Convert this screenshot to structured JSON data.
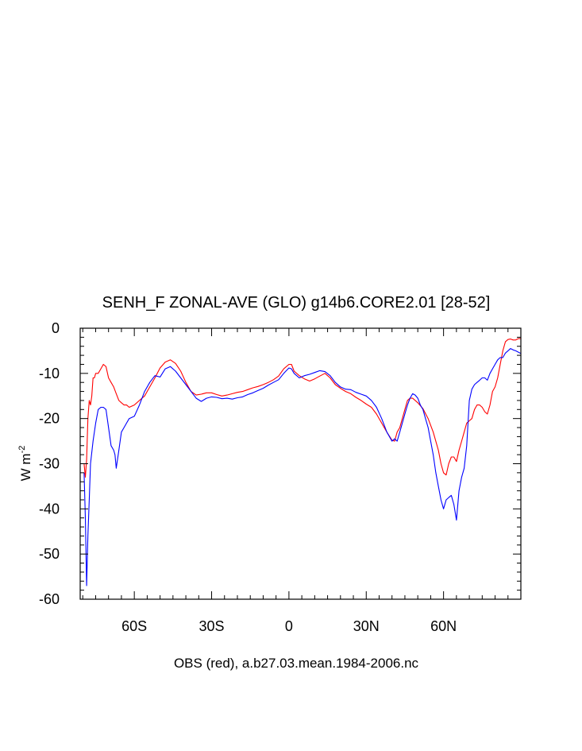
{
  "chart_data": {
    "type": "line",
    "title": "SENH_F ZONAL-AVE (GLO) g14b6.CORE2.01 [28-52]",
    "ylabel": "W m",
    "ylabel_exponent": "-2",
    "caption": "OBS (red), a.b27.03.mean.1984-2006.nc",
    "xlim": [
      -81,
      90
    ],
    "ylim": [
      -60,
      0
    ],
    "x_ticks": [
      {
        "value": -60,
        "label": "60S"
      },
      {
        "value": -30,
        "label": "30S"
      },
      {
        "value": 0,
        "label": "0"
      },
      {
        "value": 30,
        "label": "30N"
      },
      {
        "value": 60,
        "label": "60N"
      }
    ],
    "y_ticks": [
      {
        "value": 0,
        "label": "0"
      },
      {
        "value": -10,
        "label": "-10"
      },
      {
        "value": -20,
        "label": "-20"
      },
      {
        "value": -30,
        "label": "-30"
      },
      {
        "value": -40,
        "label": "-40"
      },
      {
        "value": -50,
        "label": "-50"
      },
      {
        "value": -60,
        "label": "-60"
      }
    ],
    "grid": false,
    "series": [
      {
        "color": "#ff0000",
        "points": [
          [
            -79.5,
            -30
          ],
          [
            -79,
            -33
          ],
          [
            -78.5,
            -29
          ],
          [
            -78,
            -20
          ],
          [
            -77.5,
            -16
          ],
          [
            -77,
            -17
          ],
          [
            -76.5,
            -15
          ],
          [
            -76,
            -11
          ],
          [
            -75.5,
            -11
          ],
          [
            -75,
            -10
          ],
          [
            -74,
            -10
          ],
          [
            -73,
            -9
          ],
          [
            -72,
            -8
          ],
          [
            -71,
            -8.5
          ],
          [
            -70,
            -11
          ],
          [
            -69,
            -12
          ],
          [
            -68,
            -13
          ],
          [
            -67,
            -14.5
          ],
          [
            -66,
            -16
          ],
          [
            -65,
            -16.5
          ],
          [
            -64,
            -17
          ],
          [
            -63,
            -17
          ],
          [
            -62,
            -17.5
          ],
          [
            -60,
            -17
          ],
          [
            -58,
            -16
          ],
          [
            -56,
            -15
          ],
          [
            -54,
            -13
          ],
          [
            -52,
            -11
          ],
          [
            -50,
            -8.8
          ],
          [
            -48,
            -7.5
          ],
          [
            -46,
            -7
          ],
          [
            -44,
            -7.8
          ],
          [
            -42,
            -9.5
          ],
          [
            -40,
            -12
          ],
          [
            -38,
            -14
          ],
          [
            -36,
            -14.8
          ],
          [
            -34,
            -14.6
          ],
          [
            -32,
            -14.3
          ],
          [
            -30,
            -14.3
          ],
          [
            -28,
            -14.7
          ],
          [
            -26,
            -15
          ],
          [
            -24,
            -14.8
          ],
          [
            -22,
            -14.5
          ],
          [
            -20,
            -14.2
          ],
          [
            -18,
            -14
          ],
          [
            -16,
            -13.6
          ],
          [
            -14,
            -13.2
          ],
          [
            -12,
            -12.9
          ],
          [
            -10,
            -12.5
          ],
          [
            -8,
            -12
          ],
          [
            -6,
            -11.4
          ],
          [
            -4,
            -10.6
          ],
          [
            -2,
            -9
          ],
          [
            0,
            -8
          ],
          [
            1,
            -8
          ],
          [
            2,
            -9.5
          ],
          [
            4,
            -10.5
          ],
          [
            6,
            -11.2
          ],
          [
            8,
            -11.7
          ],
          [
            10,
            -11.2
          ],
          [
            12,
            -10.6
          ],
          [
            14,
            -10
          ],
          [
            16,
            -11
          ],
          [
            18,
            -12.5
          ],
          [
            20,
            -13.3
          ],
          [
            22,
            -14
          ],
          [
            24,
            -14.5
          ],
          [
            26,
            -15.3
          ],
          [
            28,
            -16
          ],
          [
            30,
            -16.8
          ],
          [
            32,
            -17.5
          ],
          [
            34,
            -19
          ],
          [
            36,
            -21
          ],
          [
            38,
            -23
          ],
          [
            40,
            -24.8
          ],
          [
            41,
            -25
          ],
          [
            42,
            -23
          ],
          [
            43,
            -22
          ],
          [
            44,
            -20
          ],
          [
            45,
            -18
          ],
          [
            46,
            -16
          ],
          [
            47,
            -15.5
          ],
          [
            48,
            -15.5
          ],
          [
            50,
            -16.5
          ],
          [
            52,
            -17.8
          ],
          [
            54,
            -20
          ],
          [
            56,
            -23
          ],
          [
            58,
            -27
          ],
          [
            59,
            -30
          ],
          [
            60,
            -32
          ],
          [
            61,
            -32.5
          ],
          [
            62,
            -30
          ],
          [
            63,
            -28.5
          ],
          [
            64,
            -28.5
          ],
          [
            65,
            -29.5
          ],
          [
            66,
            -27
          ],
          [
            67,
            -25
          ],
          [
            68,
            -23
          ],
          [
            69,
            -21
          ],
          [
            70,
            -20.5
          ],
          [
            71,
            -20
          ],
          [
            72,
            -18
          ],
          [
            73,
            -17
          ],
          [
            74,
            -17
          ],
          [
            75,
            -17.5
          ],
          [
            76,
            -18.5
          ],
          [
            77,
            -19
          ],
          [
            78,
            -17
          ],
          [
            79,
            -14
          ],
          [
            80,
            -13
          ],
          [
            81,
            -11
          ],
          [
            82,
            -8
          ],
          [
            83,
            -5
          ],
          [
            84,
            -3
          ],
          [
            85,
            -2.5
          ],
          [
            86,
            -2.4
          ],
          [
            87,
            -2.6
          ],
          [
            88,
            -2.6
          ],
          [
            89,
            -2.3
          ],
          [
            90,
            -2.3
          ]
        ]
      },
      {
        "color": "#0000ff",
        "points": [
          [
            -79.5,
            -32
          ],
          [
            -79,
            -42
          ],
          [
            -78.5,
            -57
          ],
          [
            -78,
            -46
          ],
          [
            -77.5,
            -38
          ],
          [
            -77,
            -30
          ],
          [
            -76,
            -25
          ],
          [
            -75,
            -21
          ],
          [
            -74,
            -18
          ],
          [
            -73,
            -17.5
          ],
          [
            -72,
            -17.5
          ],
          [
            -71,
            -18
          ],
          [
            -70,
            -22
          ],
          [
            -69,
            -26
          ],
          [
            -68,
            -27
          ],
          [
            -67.5,
            -28
          ],
          [
            -67,
            -31
          ],
          [
            -66,
            -27
          ],
          [
            -65,
            -23
          ],
          [
            -64,
            -22
          ],
          [
            -63,
            -21
          ],
          [
            -62,
            -20
          ],
          [
            -60,
            -19.5
          ],
          [
            -58,
            -17
          ],
          [
            -56,
            -14
          ],
          [
            -54,
            -12
          ],
          [
            -52,
            -10.5
          ],
          [
            -50,
            -10.8
          ],
          [
            -48,
            -9
          ],
          [
            -46,
            -8.5
          ],
          [
            -44,
            -9.5
          ],
          [
            -42,
            -11
          ],
          [
            -40,
            -12.5
          ],
          [
            -38,
            -14
          ],
          [
            -36,
            -15.5
          ],
          [
            -34,
            -16.2
          ],
          [
            -32,
            -15.5
          ],
          [
            -30,
            -15.2
          ],
          [
            -28,
            -15.3
          ],
          [
            -26,
            -15.6
          ],
          [
            -24,
            -15.5
          ],
          [
            -22,
            -15.7
          ],
          [
            -20,
            -15.4
          ],
          [
            -18,
            -15.2
          ],
          [
            -16,
            -14.7
          ],
          [
            -14,
            -14.3
          ],
          [
            -12,
            -13.8
          ],
          [
            -10,
            -13.3
          ],
          [
            -8,
            -12.6
          ],
          [
            -6,
            -12
          ],
          [
            -4,
            -11.4
          ],
          [
            -2,
            -10
          ],
          [
            0,
            -8.8
          ],
          [
            1,
            -9
          ],
          [
            2,
            -10
          ],
          [
            4,
            -11
          ],
          [
            6,
            -10.5
          ],
          [
            8,
            -10.2
          ],
          [
            10,
            -9.8
          ],
          [
            12,
            -9.4
          ],
          [
            14,
            -9.6
          ],
          [
            16,
            -10.5
          ],
          [
            18,
            -12
          ],
          [
            20,
            -13
          ],
          [
            22,
            -13.5
          ],
          [
            24,
            -13.6
          ],
          [
            26,
            -14.2
          ],
          [
            28,
            -14.6
          ],
          [
            30,
            -15
          ],
          [
            32,
            -16
          ],
          [
            34,
            -17.5
          ],
          [
            36,
            -20
          ],
          [
            38,
            -23
          ],
          [
            40,
            -25
          ],
          [
            41,
            -24.5
          ],
          [
            42,
            -25
          ],
          [
            43,
            -23
          ],
          [
            44,
            -21
          ],
          [
            45,
            -19
          ],
          [
            46,
            -17
          ],
          [
            47,
            -15.5
          ],
          [
            48,
            -14.5
          ],
          [
            49,
            -14.8
          ],
          [
            50,
            -15.5
          ],
          [
            51,
            -17
          ],
          [
            52,
            -18
          ],
          [
            53,
            -20
          ],
          [
            54,
            -22
          ],
          [
            55,
            -25
          ],
          [
            56,
            -28
          ],
          [
            57,
            -32
          ],
          [
            58,
            -35
          ],
          [
            59,
            -38
          ],
          [
            60,
            -40
          ],
          [
            61,
            -38
          ],
          [
            62,
            -37.5
          ],
          [
            63,
            -37
          ],
          [
            64,
            -39
          ],
          [
            65,
            -42.5
          ],
          [
            66,
            -36
          ],
          [
            67,
            -33
          ],
          [
            68,
            -31
          ],
          [
            69,
            -26
          ],
          [
            70,
            -16
          ],
          [
            71,
            -13.5
          ],
          [
            72,
            -12.5
          ],
          [
            73,
            -12
          ],
          [
            74,
            -11.5
          ],
          [
            75,
            -11
          ],
          [
            76,
            -11
          ],
          [
            77,
            -11.5
          ],
          [
            78,
            -10
          ],
          [
            79,
            -9
          ],
          [
            80,
            -8
          ],
          [
            81,
            -7
          ],
          [
            82,
            -6.5
          ],
          [
            83,
            -6.5
          ],
          [
            84,
            -5.5
          ],
          [
            85,
            -5
          ],
          [
            86,
            -4.5
          ],
          [
            87,
            -4.8
          ],
          [
            88,
            -5
          ],
          [
            89,
            -5.3
          ],
          [
            90,
            -5.6
          ]
        ]
      }
    ]
  }
}
